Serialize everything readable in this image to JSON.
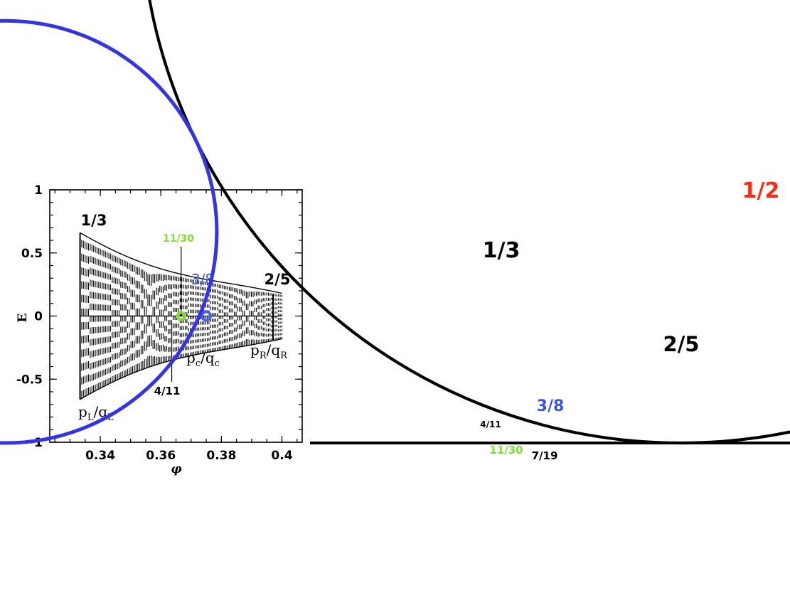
{
  "chart_data": [
    {
      "type": "scatter",
      "xlabel": "φ",
      "ylabel": "E",
      "xlim": [
        0.3233,
        0.4067
      ],
      "ylim": [
        -1,
        1
      ],
      "x_ticks": [
        0.34,
        0.36,
        0.38,
        0.4
      ],
      "y_ticks": [
        1,
        0.5,
        0,
        -0.5,
        -1
      ],
      "x_tick_labels": [
        "0.34",
        "0.36",
        "0.38",
        "0.4"
      ],
      "y_tick_labels": [
        "1",
        "0.5",
        "0",
        "-0.5",
        "−1"
      ],
      "band_envelope": {
        "x_left": 0.3333,
        "x_right": 0.4,
        "e_max_left": 0.66,
        "e_max_right": 0.18
      },
      "annotations": {
        "left_rational": "1/3",
        "right_rational": "2/5",
        "center_rational": "3/8",
        "upper_marker": "11/30",
        "lower_marker": "4/11",
        "pl": "p",
        "pl_sub": "L",
        "ql": "q",
        "ql_sub": "L",
        "pc": "p",
        "pc_sub": "c",
        "qc": "q",
        "qc_sub": "c",
        "pr": "p",
        "pr_sub": "R",
        "qr": "q",
        "qr_sub": "R",
        "slash": "/"
      },
      "points": [
        {
          "label": "3/8",
          "x": 0.375,
          "y": 0,
          "color": "#4466ee"
        },
        {
          "label": "11/30",
          "x": 0.3667,
          "y": 0,
          "color": "#7ee02c"
        }
      ],
      "vertical_segments": [
        {
          "label": "11/30",
          "x": 0.3667,
          "y_from": 0.55,
          "y_to": 0.0
        },
        {
          "label": "4/11",
          "x": 0.3636,
          "y_from": -0.05,
          "y_to": -0.52
        }
      ]
    },
    {
      "type": "diagram",
      "description_items": [
        "Ford circles"
      ],
      "circles": [
        {
          "label": "1/3",
          "p": 1,
          "q": 3,
          "color": "#000000"
        },
        {
          "label": "1/2",
          "p": 1,
          "q": 2,
          "color": "#ff2a10"
        },
        {
          "label": "2/5",
          "p": 2,
          "q": 5,
          "color": "#000000"
        },
        {
          "label": "3/8",
          "p": 3,
          "q": 8,
          "color": "#3333ee"
        },
        {
          "label": "4/11",
          "p": 4,
          "q": 11,
          "color": "#000000"
        },
        {
          "label": "7/19",
          "p": 7,
          "q": 19,
          "color": "#000000"
        },
        {
          "label": "11/30",
          "p": 11,
          "q": 30,
          "color": "#7ee02c"
        }
      ]
    }
  ],
  "colors": {
    "black": "#000000",
    "red": "#ff2a10",
    "blue": "#3333ee",
    "blue_label": "#3a56e0",
    "green": "#7ee02c"
  }
}
